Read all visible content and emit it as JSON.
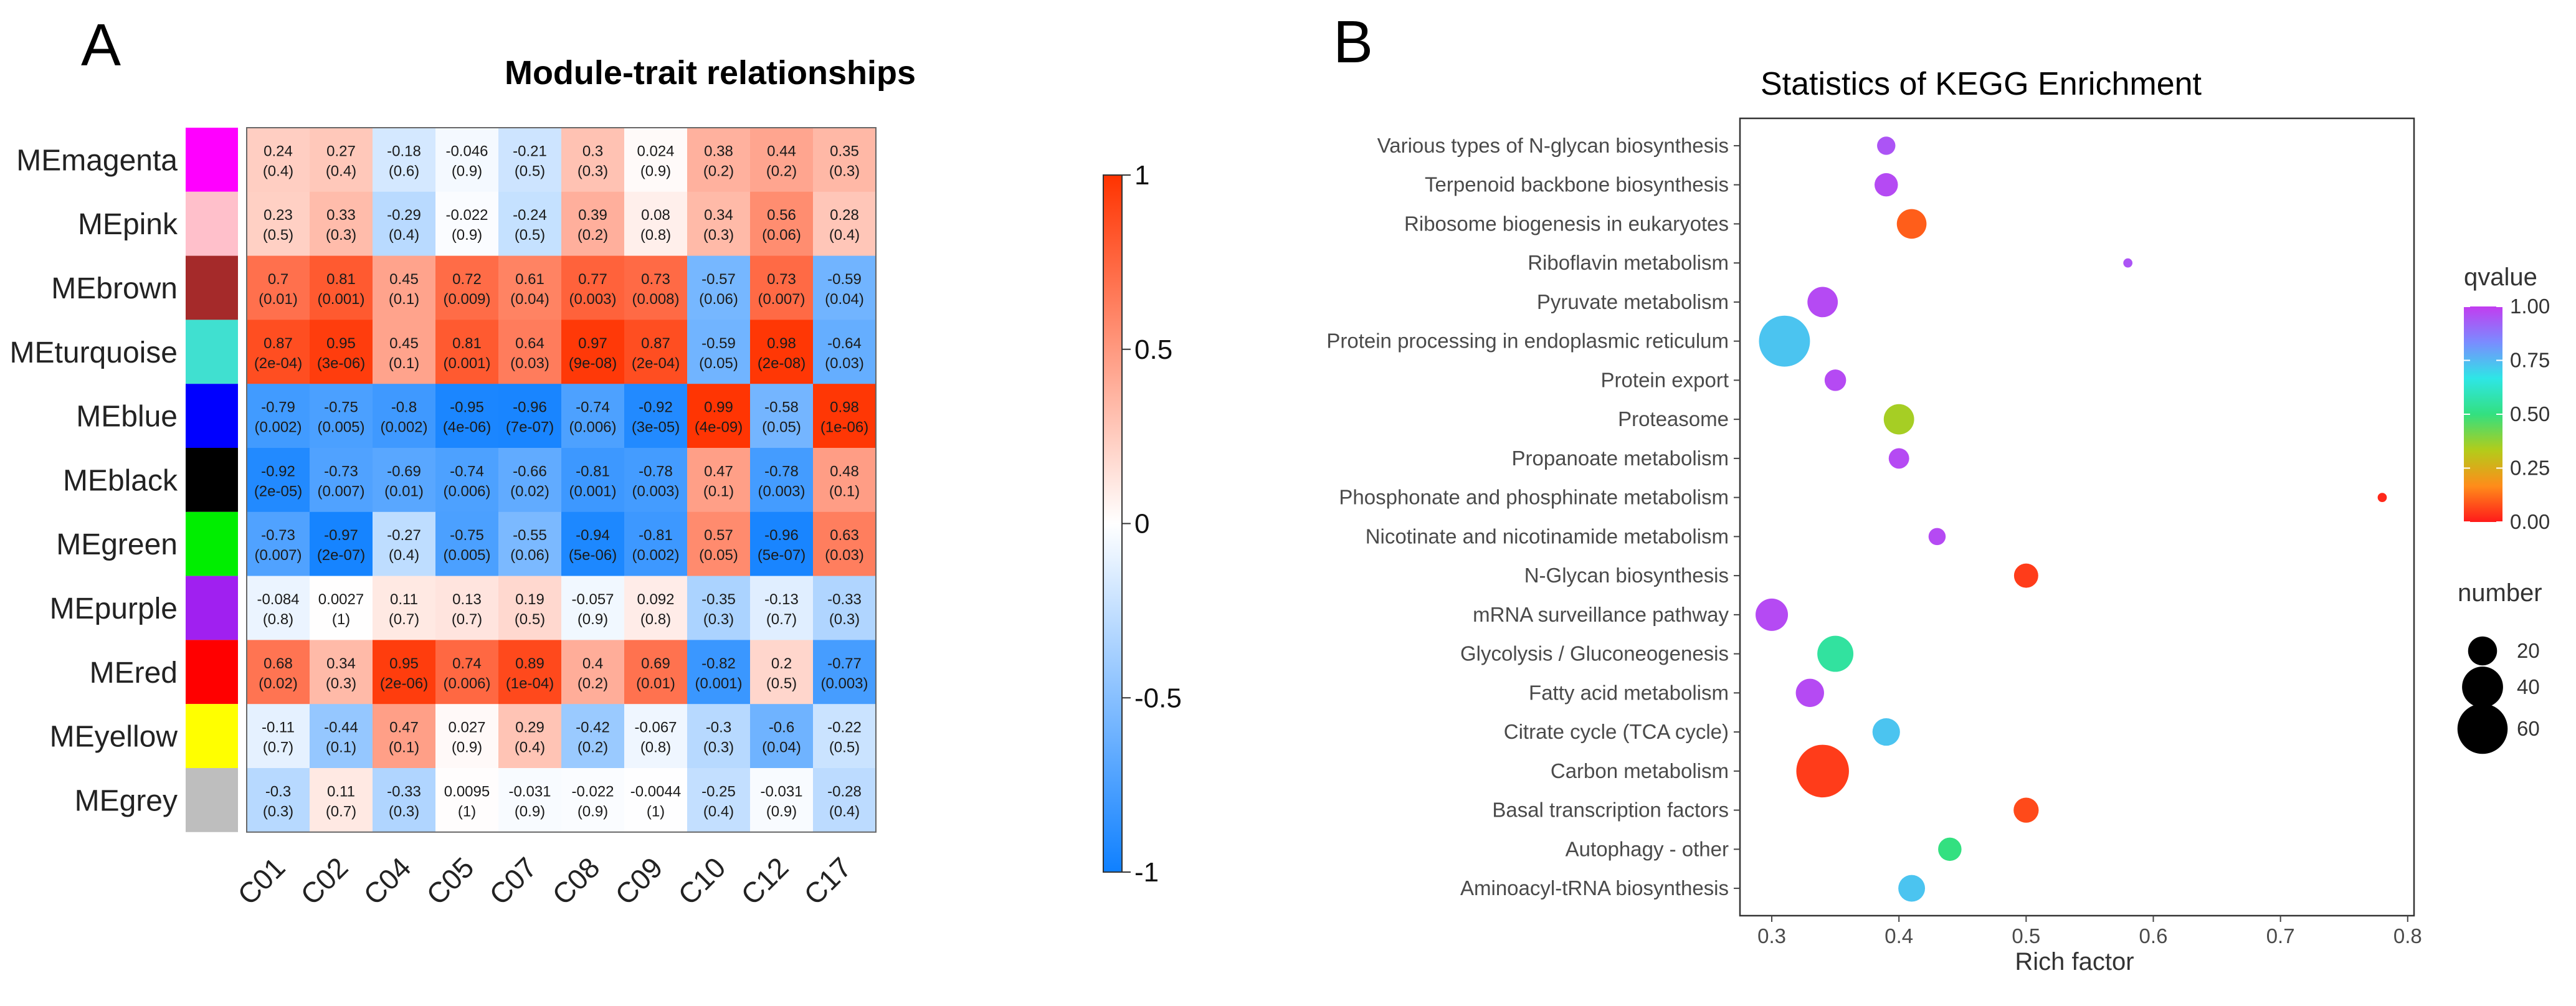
{
  "panel_a": {
    "letter": "A",
    "chart_data": {
      "type": "heatmap",
      "title": "Module-trait relationships",
      "rows": [
        {
          "name": "MEmagenta",
          "color": "#ff00ff"
        },
        {
          "name": "MEpink",
          "color": "#ffc0cb"
        },
        {
          "name": "MEbrown",
          "color": "#a52a2a"
        },
        {
          "name": "MEturquoise",
          "color": "#40e0d0"
        },
        {
          "name": "MEblue",
          "color": "#0000ff"
        },
        {
          "name": "MEblack",
          "color": "#000000"
        },
        {
          "name": "MEgreen",
          "color": "#00ee00"
        },
        {
          "name": "MEpurple",
          "color": "#a020f0"
        },
        {
          "name": "MEred",
          "color": "#ff0000"
        },
        {
          "name": "MEyellow",
          "color": "#ffff00"
        },
        {
          "name": "MEgrey",
          "color": "#bebebe"
        }
      ],
      "columns": [
        "C01",
        "C02",
        "C04",
        "C05",
        "C07",
        "C08",
        "C09",
        "C10",
        "C12",
        "C17"
      ],
      "values": [
        [
          0.24,
          0.27,
          -0.18,
          -0.046,
          -0.21,
          0.3,
          0.024,
          0.38,
          0.44,
          0.35
        ],
        [
          0.23,
          0.33,
          -0.29,
          -0.022,
          -0.24,
          0.39,
          0.08,
          0.34,
          0.56,
          0.28
        ],
        [
          0.7,
          0.81,
          0.45,
          0.72,
          0.61,
          0.77,
          0.73,
          -0.57,
          0.73,
          -0.59
        ],
        [
          0.87,
          0.95,
          0.45,
          0.81,
          0.64,
          0.97,
          0.87,
          -0.59,
          0.98,
          -0.64
        ],
        [
          -0.79,
          -0.75,
          -0.8,
          -0.95,
          -0.96,
          -0.74,
          -0.92,
          0.99,
          -0.58,
          0.98
        ],
        [
          -0.92,
          -0.73,
          -0.69,
          -0.74,
          -0.66,
          -0.81,
          -0.78,
          0.47,
          -0.78,
          0.48
        ],
        [
          -0.73,
          -0.97,
          -0.27,
          -0.75,
          -0.55,
          -0.94,
          -0.81,
          0.57,
          -0.96,
          0.63
        ],
        [
          -0.084,
          0.0027,
          0.11,
          0.13,
          0.19,
          -0.057,
          0.092,
          -0.35,
          -0.13,
          -0.33
        ],
        [
          0.68,
          0.34,
          0.95,
          0.74,
          0.89,
          0.4,
          0.69,
          -0.82,
          0.2,
          -0.77
        ],
        [
          -0.11,
          -0.44,
          0.47,
          0.027,
          0.29,
          -0.42,
          -0.067,
          -0.3,
          -0.6,
          -0.22
        ],
        [
          -0.3,
          0.11,
          -0.33,
          0.0095,
          -0.031,
          -0.022,
          -0.0044,
          -0.25,
          -0.031,
          -0.28
        ]
      ],
      "pvalues": [
        [
          "0.4",
          "0.4",
          "0.6",
          "0.9",
          "0.5",
          "0.3",
          "0.9",
          "0.2",
          "0.2",
          "0.3"
        ],
        [
          "0.5",
          "0.3",
          "0.4",
          "0.9",
          "0.5",
          "0.2",
          "0.8",
          "0.3",
          "0.06",
          "0.4"
        ],
        [
          "0.01",
          "0.001",
          "0.1",
          "0.009",
          "0.04",
          "0.003",
          "0.008",
          "0.06",
          "0.007",
          "0.04"
        ],
        [
          "2e-04",
          "3e-06",
          "0.1",
          "0.001",
          "0.03",
          "9e-08",
          "2e-04",
          "0.05",
          "2e-08",
          "0.03"
        ],
        [
          "0.002",
          "0.005",
          "0.002",
          "4e-06",
          "7e-07",
          "0.006",
          "3e-05",
          "4e-09",
          "0.05",
          "1e-06"
        ],
        [
          "2e-05",
          "0.007",
          "0.01",
          "0.006",
          "0.02",
          "0.001",
          "0.003",
          "0.1",
          "0.003",
          "0.1"
        ],
        [
          "0.007",
          "2e-07",
          "0.4",
          "0.005",
          "0.06",
          "5e-06",
          "0.002",
          "0.05",
          "5e-07",
          "0.03"
        ],
        [
          "0.8",
          "1",
          "0.7",
          "0.7",
          "0.5",
          "0.9",
          "0.8",
          "0.3",
          "0.7",
          "0.3"
        ],
        [
          "0.02",
          "0.3",
          "2e-06",
          "0.006",
          "1e-04",
          "0.2",
          "0.01",
          "0.001",
          "0.5",
          "0.003"
        ],
        [
          "0.7",
          "0.1",
          "0.1",
          "0.9",
          "0.4",
          "0.2",
          "0.8",
          "0.3",
          "0.04",
          "0.5"
        ],
        [
          "0.3",
          "0.7",
          "0.3",
          "1",
          "0.9",
          "0.9",
          "1",
          "0.4",
          "0.9",
          "0.4"
        ]
      ],
      "colorbar": {
        "ticks": [
          1,
          0.5,
          0,
          -0.5,
          -1
        ],
        "tick_labels": [
          "1",
          "0.5",
          "0",
          "-0.5",
          "-1"
        ],
        "colors": {
          "positive": "#ff3300",
          "zero": "#ffffff",
          "negative": "#0f80ff"
        }
      }
    }
  },
  "panel_b": {
    "letter": "B",
    "chart_data": {
      "type": "scatter",
      "title": "Statistics of KEGG Enrichment",
      "xlabel": "Rich factor",
      "xlim": [
        0.275,
        0.805
      ],
      "xticks": [
        0.3,
        0.4,
        0.5,
        0.6,
        0.7,
        0.8
      ],
      "xtick_labels": [
        "0.3",
        "0.4",
        "0.5",
        "0.6",
        "0.7",
        "0.8"
      ],
      "pathways": [
        {
          "name": "Various types of N-glycan biosynthesis",
          "rich": 0.39,
          "qvalue": 0.95,
          "number": 8
        },
        {
          "name": "Terpenoid backbone biosynthesis",
          "rich": 0.39,
          "qvalue": 0.97,
          "number": 13
        },
        {
          "name": "Ribosome biogenesis in eukaryotes",
          "rich": 0.41,
          "qvalue": 0.1,
          "number": 21
        },
        {
          "name": "Riboflavin metabolism",
          "rich": 0.58,
          "qvalue": 0.95,
          "number": 2
        },
        {
          "name": "Pyruvate metabolism",
          "rich": 0.34,
          "qvalue": 0.97,
          "number": 22
        },
        {
          "name": "Protein processing in endoplasmic reticulum",
          "rich": 0.31,
          "qvalue": 0.73,
          "number": 62
        },
        {
          "name": "Protein export",
          "rich": 0.35,
          "qvalue": 0.97,
          "number": 11
        },
        {
          "name": "Proteasome",
          "rich": 0.4,
          "qvalue": 0.35,
          "number": 22
        },
        {
          "name": "Propanoate metabolism",
          "rich": 0.4,
          "qvalue": 0.97,
          "number": 10
        },
        {
          "name": "Phosphonate and phosphinate metabolism",
          "rich": 0.78,
          "qvalue": 0.02,
          "number": 2
        },
        {
          "name": "Nicotinate and nicotinamide metabolism",
          "rich": 0.43,
          "qvalue": 0.97,
          "number": 7
        },
        {
          "name": "N-Glycan biosynthesis",
          "rich": 0.5,
          "qvalue": 0.05,
          "number": 14
        },
        {
          "name": "mRNA surveillance pathway",
          "rich": 0.3,
          "qvalue": 0.97,
          "number": 25
        },
        {
          "name": "Glycolysis / Gluconeogenesis",
          "rich": 0.35,
          "qvalue": 0.55,
          "number": 31
        },
        {
          "name": "Fatty acid metabolism",
          "rich": 0.33,
          "qvalue": 0.97,
          "number": 19
        },
        {
          "name": "Citrate cycle (TCA cycle)",
          "rich": 0.39,
          "qvalue": 0.73,
          "number": 18
        },
        {
          "name": "Carbon metabolism",
          "rich": 0.34,
          "qvalue": 0.05,
          "number": 66
        },
        {
          "name": "Basal transcription factors",
          "rich": 0.5,
          "qvalue": 0.07,
          "number": 15
        },
        {
          "name": "Autophagy - other",
          "rich": 0.44,
          "qvalue": 0.5,
          "number": 13
        },
        {
          "name": "Aminoacyl-tRNA biosynthesis",
          "rich": 0.41,
          "qvalue": 0.73,
          "number": 17
        }
      ],
      "qvalue_legend": {
        "title": "qvalue",
        "ticks": [
          1.0,
          0.75,
          0.5,
          0.25,
          0.0
        ],
        "tick_labels": [
          "1.00",
          "0.75",
          "0.50",
          "0.25",
          "0.00"
        ],
        "gradient": [
          "#ff1a1a",
          "#ff8c1a",
          "#b3cc1a",
          "#33e080",
          "#2ee6e6",
          "#7a8cff",
          "#c23cf0"
        ]
      },
      "number_legend": {
        "title": "number",
        "values": [
          20,
          40,
          60
        ],
        "labels": [
          "20",
          "40",
          "60"
        ]
      }
    }
  }
}
